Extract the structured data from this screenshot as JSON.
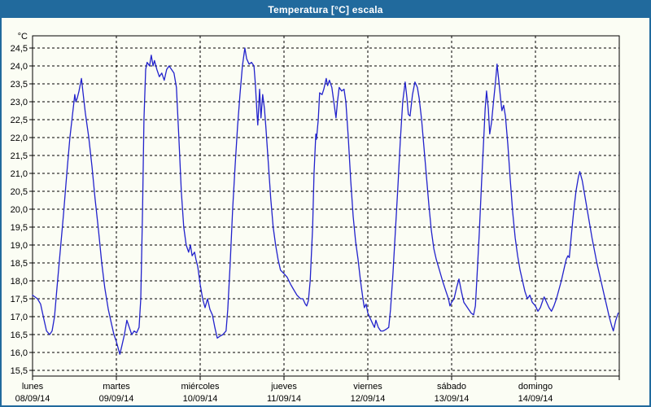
{
  "window": {
    "title": "Temperatura [°C] escala"
  },
  "colors": {
    "titlebar_bg": "#216a9d",
    "frame_border": "#216a9d",
    "background": "#fbfdf4",
    "line": "#2222cc",
    "grid": "#000000",
    "text": "#000000"
  },
  "chart_data": {
    "type": "line",
    "title": "Temperatura [°C] escala",
    "unit_label": "°C",
    "ylabel": "Temperatura [°C]",
    "ylim": [
      15.5,
      24.5
    ],
    "y_tick_step": 0.5,
    "y_tick_labels": [
      "24,5",
      "24,0",
      "23,5",
      "23,0",
      "22,5",
      "22,0",
      "21,5",
      "21,0",
      "20,5",
      "20,0",
      "19,5",
      "19,0",
      "18,5",
      "18,0",
      "17,5",
      "17,0",
      "16,5",
      "16,0",
      "15,5"
    ],
    "x_unit": "hours since 08/09/14 00:00",
    "xlim": [
      0,
      168
    ],
    "grid": true,
    "legend": false,
    "days": [
      {
        "name": "lunes",
        "date": "08/09/14"
      },
      {
        "name": "martes",
        "date": "09/09/14"
      },
      {
        "name": "miércoles",
        "date": "10/09/14"
      },
      {
        "name": "jueves",
        "date": "11/09/14"
      },
      {
        "name": "viernes",
        "date": "12/09/14"
      },
      {
        "name": "sábado",
        "date": "13/09/14"
      },
      {
        "name": "domingo",
        "date": "14/09/14"
      }
    ],
    "series": [
      {
        "name": "Temperatura",
        "color": "#2222cc",
        "points": [
          [
            0,
            17.6
          ],
          [
            1.4,
            17.5
          ],
          [
            2.3,
            17.35
          ],
          [
            3.3,
            16.9
          ],
          [
            4,
            16.6
          ],
          [
            4.9,
            16.5
          ],
          [
            5.6,
            16.6
          ],
          [
            6.3,
            17
          ],
          [
            7,
            17.8
          ],
          [
            7.9,
            18.8
          ],
          [
            8.9,
            19.9
          ],
          [
            9.8,
            21
          ],
          [
            10.7,
            22
          ],
          [
            11.4,
            22.6
          ],
          [
            12.1,
            23.2
          ],
          [
            12.4,
            23
          ],
          [
            12.8,
            23.1
          ],
          [
            13.3,
            23.3
          ],
          [
            14,
            23.65
          ],
          [
            14.4,
            23.3
          ],
          [
            15.1,
            22.7
          ],
          [
            16.1,
            22
          ],
          [
            17,
            21.2
          ],
          [
            17.9,
            20.3
          ],
          [
            18.9,
            19.4
          ],
          [
            19.8,
            18.5
          ],
          [
            20.7,
            17.8
          ],
          [
            21.7,
            17.2
          ],
          [
            22.6,
            16.8
          ],
          [
            23.3,
            16.5
          ],
          [
            24,
            16.3
          ],
          [
            25,
            15.95
          ],
          [
            25.6,
            16.2
          ],
          [
            26.3,
            16.5
          ],
          [
            27,
            16.9
          ],
          [
            27.7,
            16.7
          ],
          [
            28.4,
            16.5
          ],
          [
            29.1,
            16.6
          ],
          [
            29.8,
            16.55
          ],
          [
            30.5,
            16.7
          ],
          [
            31,
            17.5
          ],
          [
            31.5,
            20
          ],
          [
            31.9,
            22.5
          ],
          [
            32.4,
            23.9
          ],
          [
            32.8,
            24.1
          ],
          [
            33.5,
            24
          ],
          [
            34,
            24.3
          ],
          [
            34.5,
            24
          ],
          [
            34.9,
            24.15
          ],
          [
            35.6,
            23.9
          ],
          [
            36.3,
            23.7
          ],
          [
            37,
            23.8
          ],
          [
            37.7,
            23.6
          ],
          [
            38.4,
            23.9
          ],
          [
            39.1,
            24
          ],
          [
            39.8,
            23.9
          ],
          [
            40.5,
            23.8
          ],
          [
            41.2,
            23.4
          ],
          [
            41.9,
            22
          ],
          [
            42.6,
            20.5
          ],
          [
            43.3,
            19.5
          ],
          [
            44,
            19
          ],
          [
            44.7,
            18.8
          ],
          [
            45.2,
            19
          ],
          [
            45.7,
            18.7
          ],
          [
            46.4,
            18.8
          ],
          [
            46.8,
            18.6
          ],
          [
            47.3,
            18.4
          ],
          [
            48,
            17.9
          ],
          [
            48.7,
            17.5
          ],
          [
            49.4,
            17.25
          ],
          [
            50.1,
            17.5
          ],
          [
            50.8,
            17.2
          ],
          [
            51.5,
            17.05
          ],
          [
            52.2,
            16.7
          ],
          [
            52.9,
            16.4
          ],
          [
            53.6,
            16.45
          ],
          [
            54.5,
            16.5
          ],
          [
            55.4,
            16.6
          ],
          [
            55.9,
            17.2
          ],
          [
            56.6,
            18.5
          ],
          [
            57.3,
            20
          ],
          [
            58,
            21.2
          ],
          [
            58.7,
            22.3
          ],
          [
            59.4,
            23.2
          ],
          [
            60.1,
            24
          ],
          [
            60.8,
            24.5
          ],
          [
            61.3,
            24.2
          ],
          [
            62,
            24.05
          ],
          [
            62.7,
            24.1
          ],
          [
            63.4,
            24
          ],
          [
            63.8,
            23.5
          ],
          [
            64.3,
            22.6
          ],
          [
            64.5,
            22.35
          ],
          [
            65,
            23.35
          ],
          [
            65.4,
            22.55
          ],
          [
            65.9,
            23.2
          ],
          [
            66.4,
            22.8
          ],
          [
            66.8,
            22.3
          ],
          [
            67.5,
            21.3
          ],
          [
            68.2,
            20.3
          ],
          [
            68.9,
            19.5
          ],
          [
            69.6,
            19
          ],
          [
            70.3,
            18.6
          ],
          [
            71,
            18.3
          ],
          [
            71.5,
            18.25
          ],
          [
            72,
            18.2
          ],
          [
            72.9,
            18.1
          ],
          [
            73.9,
            17.9
          ],
          [
            74.8,
            17.75
          ],
          [
            75.7,
            17.6
          ],
          [
            76.7,
            17.5
          ],
          [
            77.4,
            17.5
          ],
          [
            78.1,
            17.35
          ],
          [
            78.5,
            17.3
          ],
          [
            79,
            17.45
          ],
          [
            79.5,
            18
          ],
          [
            80.2,
            19.5
          ],
          [
            80.6,
            21
          ],
          [
            81.1,
            22.1
          ],
          [
            81.3,
            21.95
          ],
          [
            81.8,
            22.5
          ],
          [
            82.2,
            23.25
          ],
          [
            82.9,
            23.2
          ],
          [
            83.4,
            23.35
          ],
          [
            84.1,
            23.65
          ],
          [
            84.5,
            23.45
          ],
          [
            85,
            23.6
          ],
          [
            85.7,
            23.4
          ],
          [
            86.4,
            22.9
          ],
          [
            86.9,
            22.55
          ],
          [
            87.3,
            23
          ],
          [
            87.8,
            23.4
          ],
          [
            88.5,
            23.3
          ],
          [
            89.2,
            23.35
          ],
          [
            89.7,
            23
          ],
          [
            90.4,
            22
          ],
          [
            91.1,
            20.8
          ],
          [
            91.8,
            19.8
          ],
          [
            92.5,
            19.1
          ],
          [
            93.2,
            18.6
          ],
          [
            93.9,
            18
          ],
          [
            94.6,
            17.5
          ],
          [
            95,
            17.25
          ],
          [
            95.5,
            17.35
          ],
          [
            96,
            17.1
          ],
          [
            96.7,
            16.95
          ],
          [
            97.4,
            16.8
          ],
          [
            97.9,
            16.7
          ],
          [
            98.3,
            16.9
          ],
          [
            99,
            16.7
          ],
          [
            99.7,
            16.6
          ],
          [
            100.4,
            16.6
          ],
          [
            101.3,
            16.65
          ],
          [
            102,
            16.7
          ],
          [
            102.5,
            17.2
          ],
          [
            103.2,
            18.2
          ],
          [
            103.9,
            19.4
          ],
          [
            104.6,
            20.6
          ],
          [
            105.3,
            21.9
          ],
          [
            106,
            23
          ],
          [
            106.7,
            23.55
          ],
          [
            107.2,
            23.1
          ],
          [
            107.6,
            22.65
          ],
          [
            108.1,
            22.6
          ],
          [
            108.8,
            23.2
          ],
          [
            109.5,
            23.55
          ],
          [
            110.2,
            23.4
          ],
          [
            110.7,
            23.1
          ],
          [
            111.4,
            22.5
          ],
          [
            112.1,
            21.7
          ],
          [
            112.8,
            20.9
          ],
          [
            113.5,
            20.1
          ],
          [
            114.2,
            19.4
          ],
          [
            114.9,
            18.9
          ],
          [
            115.6,
            18.6
          ],
          [
            116.5,
            18.3
          ],
          [
            117.4,
            18
          ],
          [
            118.4,
            17.7
          ],
          [
            119.1,
            17.5
          ],
          [
            119.5,
            17.3
          ],
          [
            120,
            17.4
          ],
          [
            120.7,
            17.5
          ],
          [
            121.4,
            17.8
          ],
          [
            122.1,
            18.05
          ],
          [
            122.8,
            17.7
          ],
          [
            123.5,
            17.4
          ],
          [
            124.2,
            17.3
          ],
          [
            124.9,
            17.2
          ],
          [
            125.6,
            17.1
          ],
          [
            126.3,
            17.05
          ],
          [
            126.8,
            17.3
          ],
          [
            127.2,
            18
          ],
          [
            127.9,
            19.3
          ],
          [
            128.6,
            20.8
          ],
          [
            129.1,
            21.8
          ],
          [
            129.6,
            22.8
          ],
          [
            130,
            23.3
          ],
          [
            130.5,
            22.8
          ],
          [
            130.9,
            22.1
          ],
          [
            131.4,
            22.4
          ],
          [
            132.1,
            23.1
          ],
          [
            132.6,
            23.6
          ],
          [
            133,
            24.05
          ],
          [
            133.5,
            23.6
          ],
          [
            134,
            23.1
          ],
          [
            134.4,
            22.75
          ],
          [
            134.9,
            22.9
          ],
          [
            135.4,
            22.6
          ],
          [
            136.1,
            21.8
          ],
          [
            136.8,
            20.8
          ],
          [
            137.5,
            19.9
          ],
          [
            138.2,
            19.2
          ],
          [
            138.9,
            18.7
          ],
          [
            139.6,
            18.3
          ],
          [
            140.3,
            18
          ],
          [
            141,
            17.7
          ],
          [
            141.7,
            17.5
          ],
          [
            142.4,
            17.6
          ],
          [
            143.1,
            17.4
          ],
          [
            144,
            17.3
          ],
          [
            144.7,
            17.15
          ],
          [
            145.4,
            17.25
          ],
          [
            146.1,
            17.45
          ],
          [
            146.5,
            17.55
          ],
          [
            147.2,
            17.4
          ],
          [
            147.9,
            17.25
          ],
          [
            148.6,
            17.15
          ],
          [
            149.3,
            17.3
          ],
          [
            150,
            17.5
          ],
          [
            150.7,
            17.75
          ],
          [
            151.4,
            18
          ],
          [
            152.1,
            18.3
          ],
          [
            152.8,
            18.6
          ],
          [
            153.3,
            18.7
          ],
          [
            153.7,
            18.65
          ],
          [
            154.2,
            19.2
          ],
          [
            154.9,
            19.9
          ],
          [
            155.6,
            20.5
          ],
          [
            156.3,
            20.9
          ],
          [
            156.7,
            21.05
          ],
          [
            157.4,
            20.8
          ],
          [
            158.1,
            20.4
          ],
          [
            158.8,
            20
          ],
          [
            159.5,
            19.6
          ],
          [
            160.2,
            19.2
          ],
          [
            160.9,
            18.85
          ],
          [
            161.6,
            18.5
          ],
          [
            162.3,
            18.2
          ],
          [
            163,
            17.9
          ],
          [
            163.7,
            17.6
          ],
          [
            164.4,
            17.3
          ],
          [
            165.1,
            17
          ],
          [
            165.8,
            16.75
          ],
          [
            166.3,
            16.6
          ],
          [
            167,
            16.9
          ],
          [
            167.7,
            17.1
          ]
        ]
      }
    ]
  }
}
